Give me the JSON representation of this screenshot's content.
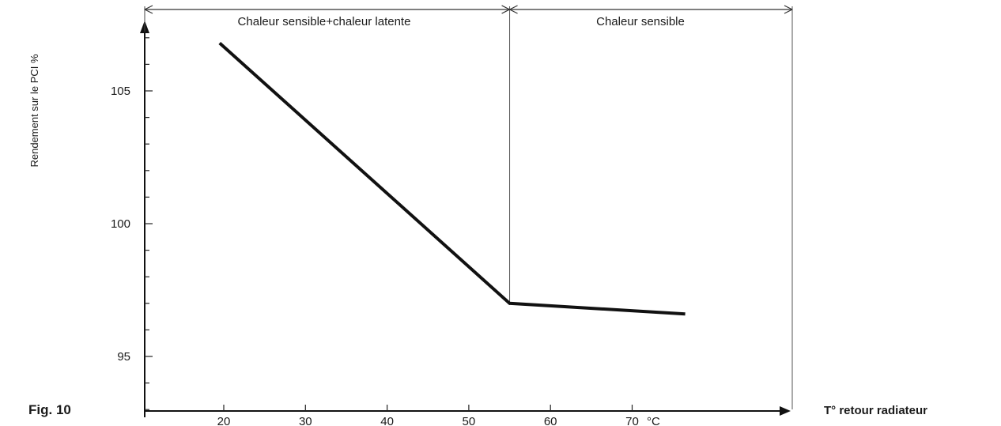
{
  "figure_label": "Fig. 10",
  "chart_data": {
    "type": "line",
    "title": "",
    "xlabel": "T° retour radiateur",
    "ylabel": "Rendement sur le PCI %",
    "x_unit": "°C",
    "x_ticks": [
      "20",
      "30",
      "40",
      "50",
      "60",
      "70"
    ],
    "y_ticks": [
      "95",
      "100",
      "105"
    ],
    "xlim": [
      10,
      88
    ],
    "ylim": [
      93,
      108
    ],
    "regions": [
      {
        "label": "Chaleur sensible+chaleur latente",
        "x_range": [
          10,
          55
        ]
      },
      {
        "label": "Chaleur sensible",
        "x_range": [
          55,
          88
        ]
      }
    ],
    "series": [
      {
        "x": [
          19.5,
          55,
          76.5
        ],
        "y": [
          106.8,
          97,
          96.6
        ]
      }
    ],
    "grid": false
  }
}
